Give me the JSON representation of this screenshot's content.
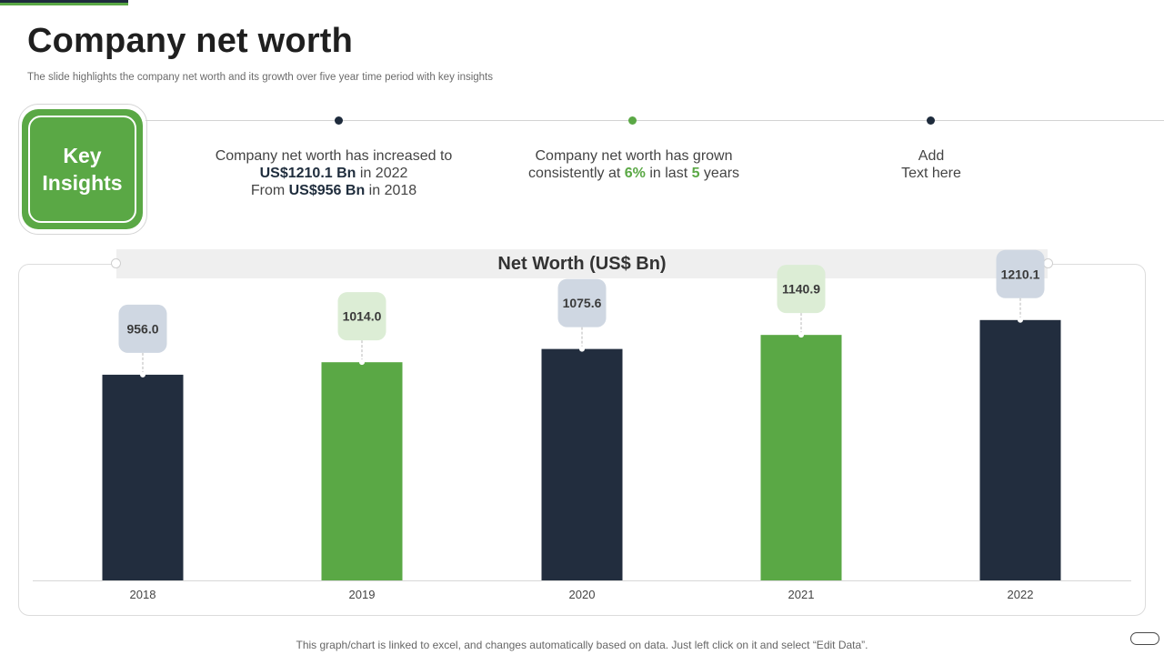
{
  "slide": {
    "title": "Company net worth",
    "subtitle": "The slide highlights the company net worth and its growth over five year time period with key insights",
    "footer_note": "This graph/chart is linked to excel,  and changes automatically based on data. Just left click on it and select “Edit Data”."
  },
  "key_insights": {
    "label": "Key\nInsights",
    "items": [
      {
        "line1": "Company net worth has increased to",
        "line2_bold": "US$1210.1 Bn",
        "line2_rest": " in 2022",
        "line3_pre": "From ",
        "line3_bold": "US$956 Bn",
        "line3_rest": " in 2018",
        "dot_color": "#1e2b3c"
      },
      {
        "line1": "Company net worth has grown",
        "line2_pre": "consistently  at ",
        "line2_green1": "6%",
        "line2_mid": " in last ",
        "line2_green2": "5",
        "line2_rest": " years",
        "dot_color": "#5aa845"
      },
      {
        "line1": "Add",
        "line2": "Text here",
        "dot_color": "#1e2b3c"
      }
    ]
  },
  "colors": {
    "navy": "#222d3e",
    "green": "#5aa845",
    "label_navy_bg": "#cfd7e2",
    "label_green_bg": "#dcedd5"
  },
  "chart_data": {
    "type": "bar",
    "title": "Net Worth (US$ Bn)",
    "categories": [
      "2018",
      "2019",
      "2020",
      "2021",
      "2022"
    ],
    "values": [
      956.0,
      1014.0,
      1075.6,
      1140.9,
      1210.1
    ],
    "value_labels": [
      "956.0",
      "1014.0",
      "1075.6",
      "1140.9",
      "1210.1"
    ],
    "bar_colors": [
      "navy",
      "green",
      "navy",
      "green",
      "navy"
    ],
    "ylim": [
      0,
      1260
    ],
    "xlabel": "",
    "ylabel": "",
    "grid": false,
    "legend": "none"
  }
}
